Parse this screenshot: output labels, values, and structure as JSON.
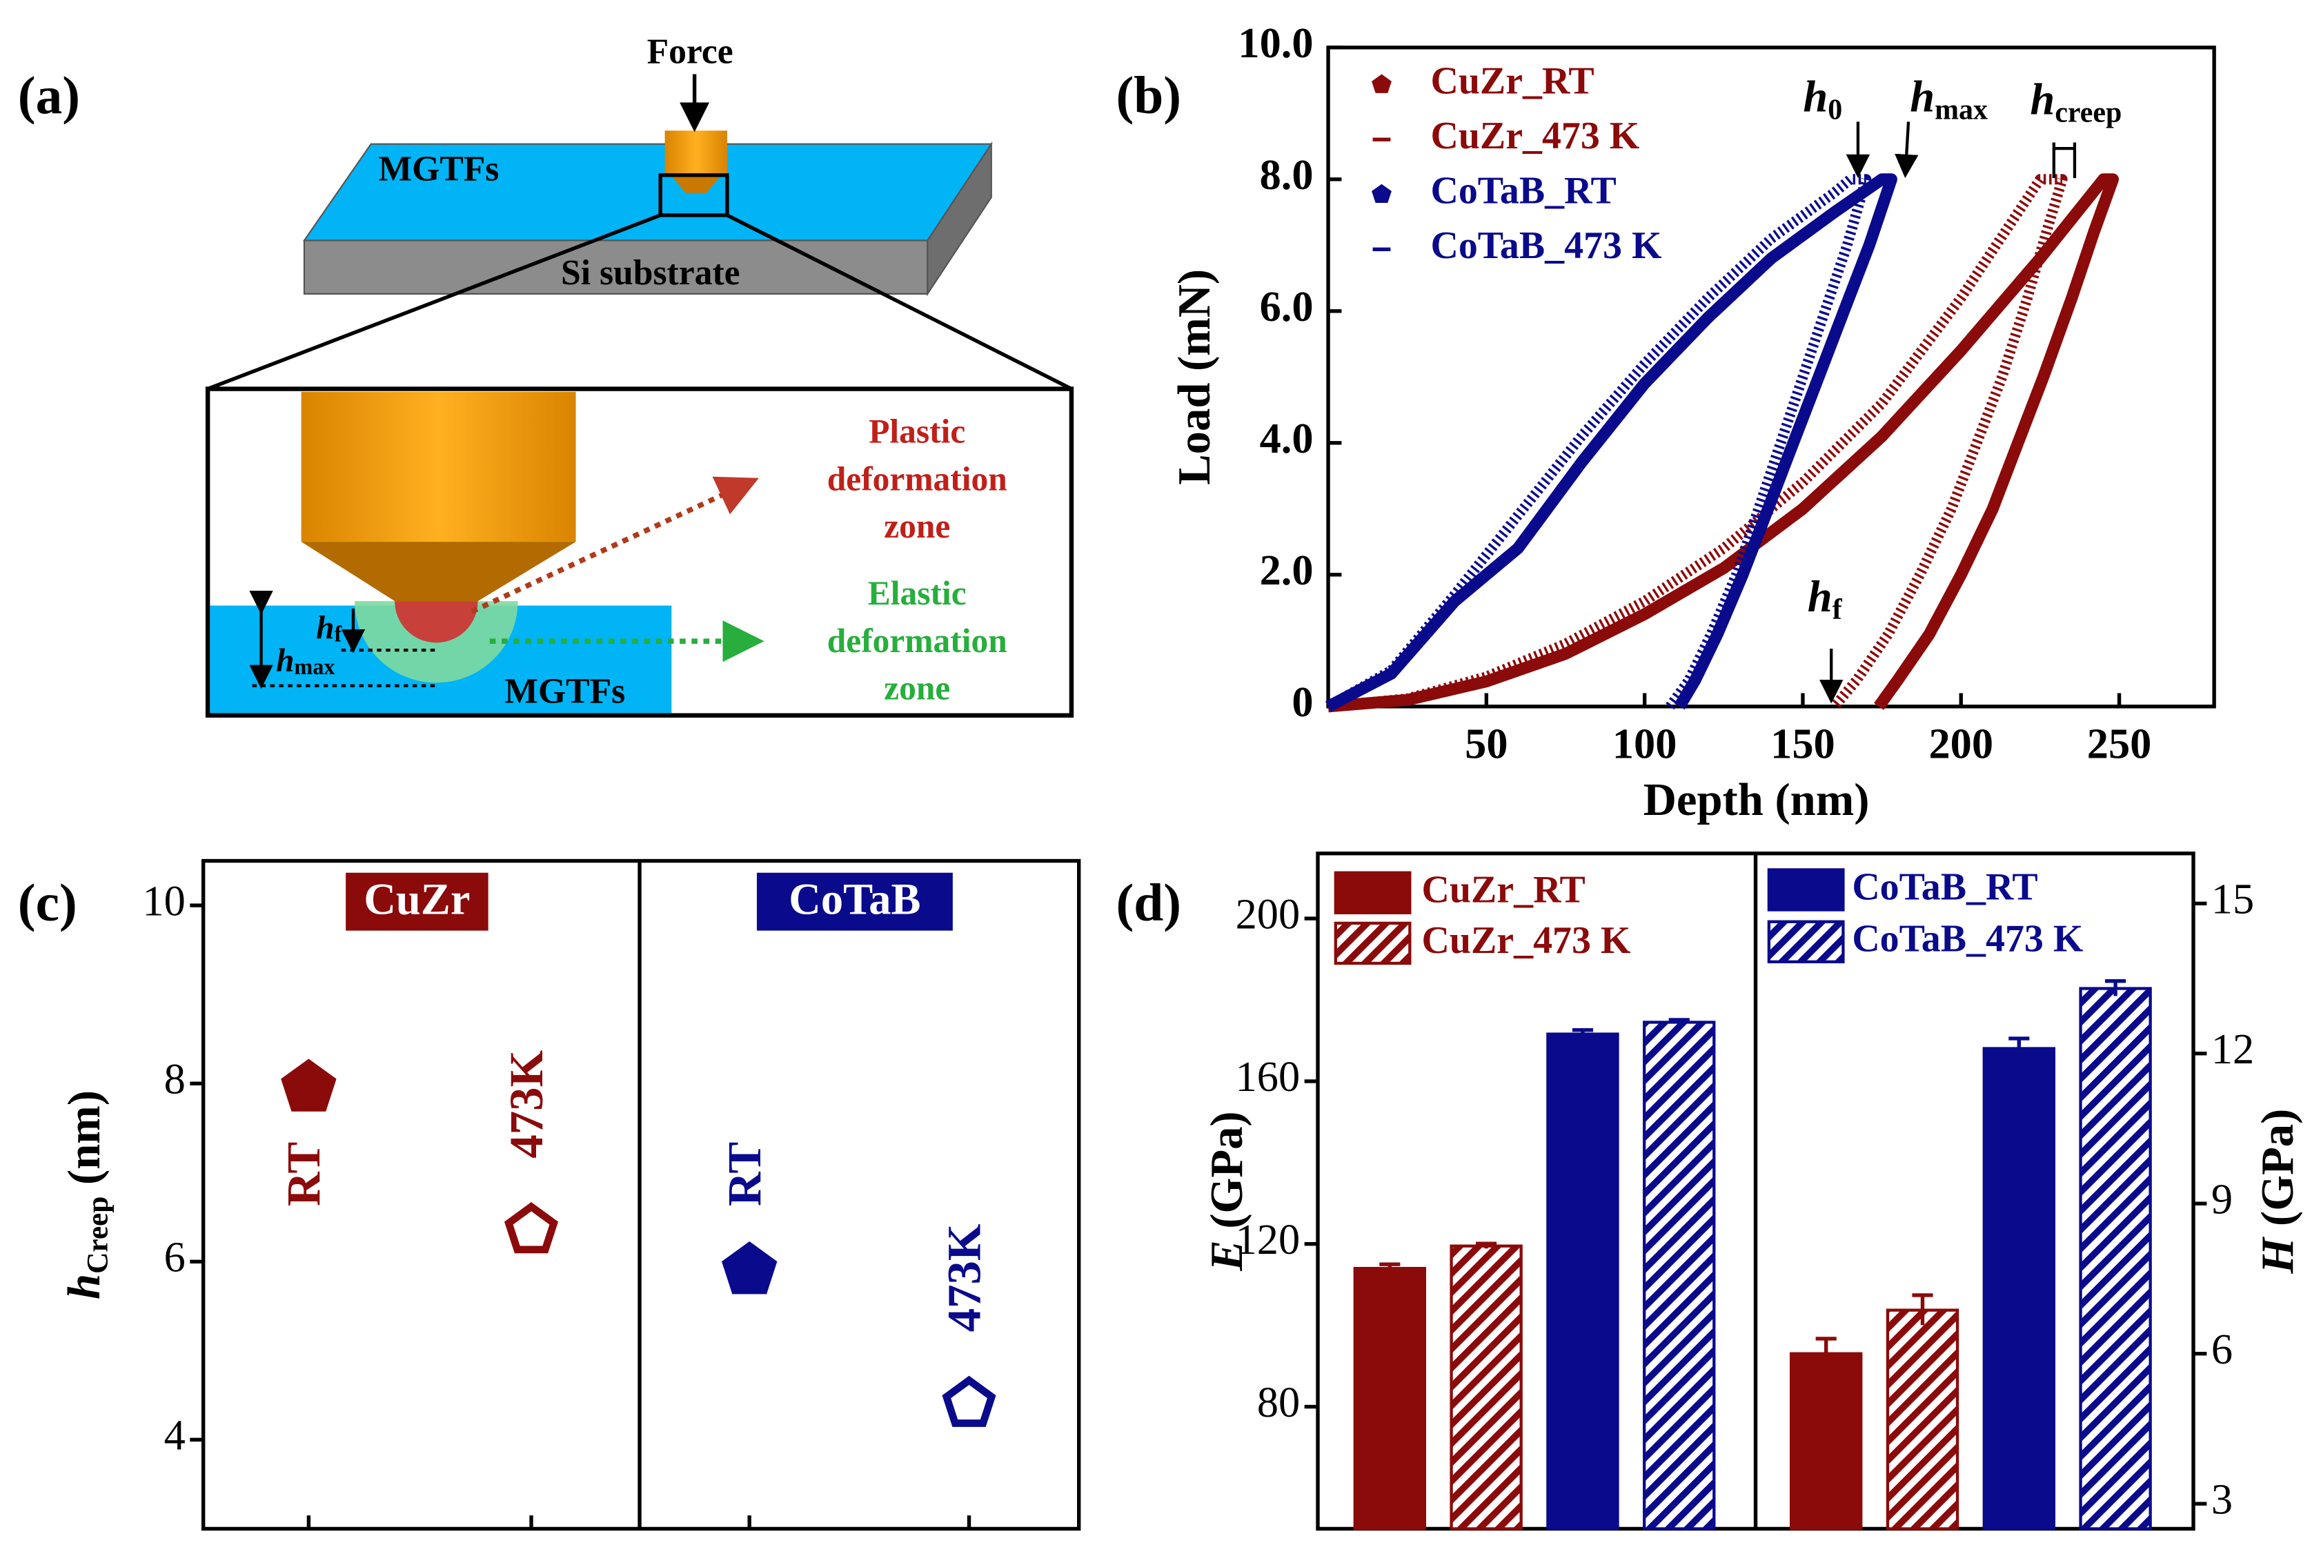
{
  "panel_labels": [
    "(a)",
    "(b)",
    "(c)",
    "(d)"
  ],
  "diagram": {
    "force": "Force",
    "film": "MGTFs",
    "substrate": "Si substrate",
    "plastic_zone": [
      "Plastic",
      "deformation",
      "zone"
    ],
    "elastic_zone": [
      "Elastic",
      "deformation",
      "zone"
    ],
    "film_inset": "MGTFs",
    "hf": {
      "symbol": "h",
      "sub": "f"
    },
    "hmax": {
      "symbol": "h",
      "sub": "max"
    }
  },
  "chart_data": [
    {
      "type": "line",
      "xlabel": "Depth (nm)",
      "ylabel": "Load (mN)",
      "xlim": [
        0,
        280
      ],
      "xticks": [
        50,
        100,
        150,
        200,
        250
      ],
      "ylim": [
        0,
        10
      ],
      "yticks": [
        0,
        {
          "value": 2,
          "label": "2.0"
        },
        {
          "value": 4,
          "label": "4.0"
        },
        {
          "value": 6,
          "label": "6.0"
        },
        {
          "value": 8,
          "label": "8.0"
        },
        {
          "value": 10,
          "label": "10.0"
        }
      ],
      "series": [
        {
          "name": "CuZr_RT",
          "color": "#8b0a0a",
          "style": "solid",
          "x": [
            0,
            25,
            50,
            75,
            100,
            125,
            150,
            175,
            200,
            225,
            245,
            248,
            242,
            235,
            226,
            218,
            210,
            200,
            190,
            180,
            174
          ],
          "values": [
            0,
            0.1,
            0.38,
            0.8,
            1.4,
            2.1,
            3.0,
            4.1,
            5.4,
            6.8,
            8.0,
            8.0,
            7.2,
            6.2,
            5.0,
            4.0,
            3.0,
            2.0,
            1.1,
            0.4,
            0
          ]
        },
        {
          "name": "CuZr_473 K",
          "color": "#8b0a0a",
          "style": "hatched",
          "x": [
            0,
            25,
            50,
            75,
            100,
            125,
            150,
            175,
            200,
            225,
            232,
            227,
            221,
            213,
            205,
            197,
            187,
            177,
            167,
            160
          ],
          "values": [
            0,
            0.12,
            0.45,
            0.95,
            1.6,
            2.4,
            3.4,
            4.6,
            6.2,
            8.0,
            8.0,
            7.2,
            6.2,
            5.0,
            4.0,
            3.0,
            2.0,
            1.1,
            0.4,
            0
          ]
        },
        {
          "name": "CoTaB_RT",
          "color": "#0a0a8c",
          "style": "solid",
          "x": [
            0,
            20,
            40,
            60,
            80,
            100,
            120,
            140,
            160,
            175,
            178,
            171,
            163,
            155,
            147,
            139,
            131,
            123,
            116,
            111
          ],
          "values": [
            0,
            0.5,
            1.6,
            2.4,
            3.7,
            4.9,
            5.9,
            6.8,
            7.5,
            8.0,
            8.0,
            7.0,
            6.0,
            5.0,
            4.0,
            3.0,
            2.0,
            1.1,
            0.4,
            0
          ]
        },
        {
          "name": "CoTaB_473 K",
          "color": "#0a0a8c",
          "style": "hatched",
          "x": [
            0,
            20,
            40,
            60,
            80,
            100,
            120,
            140,
            160,
            165,
            170,
            164,
            157,
            150,
            143,
            136,
            129,
            121,
            114,
            108
          ],
          "values": [
            0,
            0.55,
            1.7,
            2.9,
            4.1,
            5.2,
            6.2,
            7.1,
            7.8,
            8.0,
            8.0,
            7.0,
            6.0,
            5.0,
            4.0,
            3.0,
            2.0,
            1.1,
            0.4,
            0
          ]
        }
      ],
      "annotations": [
        {
          "symbol": "h",
          "sub": "0"
        },
        {
          "symbol": "h",
          "sub": "max"
        },
        {
          "symbol": "h",
          "sub": "creep"
        },
        {
          "symbol": "h",
          "sub": "f"
        }
      ]
    },
    {
      "type": "scatter",
      "ylabel": {
        "symbol": "h",
        "sub": "Creep",
        "unit": "(nm)"
      },
      "ylim": [
        3,
        10.5
      ],
      "yticks": [
        4,
        6,
        8,
        10
      ],
      "groups": [
        {
          "name": "CuZr",
          "color": "#8b0a0a",
          "points": [
            {
              "label": "RT",
              "value": 7.95,
              "filled": true
            },
            {
              "label": "473K",
              "value": 6.35,
              "filled": false
            }
          ]
        },
        {
          "name": "CoTaB",
          "color": "#0a0a8c",
          "points": [
            {
              "label": "RT",
              "value": 5.9,
              "filled": true
            },
            {
              "label": "473K",
              "value": 4.4,
              "filled": false
            }
          ]
        }
      ]
    },
    {
      "type": "bar",
      "ylabel": {
        "symbol": "E",
        "unit": "(GPa)"
      },
      "y2label": {
        "symbol": "H",
        "unit": "(GPa)"
      },
      "ylim": [
        50,
        216
      ],
      "yticks": [
        80,
        120,
        160,
        200
      ],
      "y2lim": [
        2.5,
        16
      ],
      "y2ticks": [
        3,
        6,
        9,
        12,
        15
      ],
      "group_axes": [
        "y",
        "y2"
      ],
      "series": [
        {
          "name": "CuZr_RT",
          "color": "#8b0a0a",
          "hatch": false,
          "values": [
            114,
            6.0
          ],
          "errors": [
            1,
            0.3
          ]
        },
        {
          "name": "CuZr_473 K",
          "color": "#8b0a0a",
          "hatch": true,
          "values": [
            119.5,
            6.87
          ],
          "errors": [
            0.6,
            0.3
          ]
        },
        {
          "name": "CoTaB_RT",
          "color": "#0a0a8c",
          "hatch": false,
          "values": [
            171.6,
            12.1
          ],
          "errors": [
            1,
            0.2
          ]
        },
        {
          "name": "CoTaB_473 K",
          "color": "#0a0a8c",
          "hatch": true,
          "values": [
            174.5,
            13.3
          ],
          "errors": [
            0.6,
            0.15
          ]
        }
      ]
    }
  ]
}
